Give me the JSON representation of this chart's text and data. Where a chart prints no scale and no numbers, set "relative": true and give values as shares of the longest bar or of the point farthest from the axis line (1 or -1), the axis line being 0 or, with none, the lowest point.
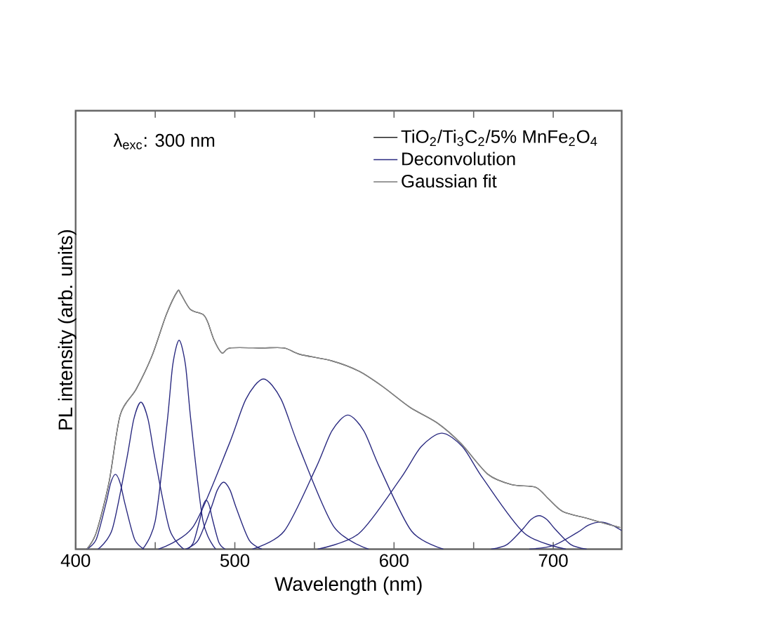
{
  "chart_data": {
    "type": "line",
    "relative": true,
    "xlabel": "Wavelength (nm)",
    "ylabel": "PL intensity (arb. units)",
    "annotations": [
      "λ$_{exc}$: 300 nm"
    ],
    "xlim": [
      400,
      743
    ],
    "xticks": [
      400,
      {
        "value": 450,
        "label": null
      },
      500,
      {
        "value": 550,
        "label": null
      },
      600,
      {
        "value": 650,
        "label": null
      },
      700
    ],
    "legend": "top right",
    "grid": false,
    "marker": "none",
    "line_style": "solid",
    "series": [
      {
        "name": "TiO$_{2}$/Ti$_{3}$C$_{2}$/5% MnFe$_{2}$O$_{4}$",
        "color": "#222222",
        "x": [
          407,
          413,
          421,
          428,
          438,
          448,
          457,
          464,
          466,
          472,
          480,
          483,
          487,
          492,
          497,
          517,
          531,
          541,
          561,
          578,
          593,
          610,
          627,
          642,
          659,
          674,
          689,
          697,
          706,
          721,
          734,
          742
        ],
        "values": [
          0,
          0.065,
          0.26,
          0.52,
          0.62,
          0.75,
          0.91,
          1.0,
          0.99,
          0.93,
          0.91,
          0.88,
          0.81,
          0.76,
          0.78,
          0.78,
          0.78,
          0.755,
          0.73,
          0.69,
          0.63,
          0.55,
          0.49,
          0.41,
          0.29,
          0.25,
          0.24,
          0.195,
          0.146,
          0.12,
          0.097,
          0.084
        ]
      },
      {
        "name": "Deconvolution",
        "color": "#2a2a80",
        "x": [
          407,
          413,
          419,
          422,
          425,
          428,
          431,
          437,
          443
        ],
        "values": [
          0,
          0.039,
          0.176,
          0.256,
          0.29,
          0.256,
          0.176,
          0.039,
          0
        ]
      },
      {
        "color": "#2a2a80",
        "x": [
          414,
          423,
          432,
          436.5,
          441,
          445.5,
          450,
          459,
          468
        ],
        "values": [
          0,
          0.077,
          0.346,
          0.503,
          0.57,
          0.503,
          0.346,
          0.077,
          0
        ]
      },
      {
        "color": "#2a2a80",
        "x": [
          442,
          450,
          457.5,
          461,
          465,
          469,
          472.5,
          480,
          488
        ],
        "values": [
          0,
          0.109,
          0.492,
          0.714,
          0.81,
          0.714,
          0.492,
          0.109,
          0
        ]
      },
      {
        "color": "#2a2a80",
        "x": [
          470,
          474,
          478,
          480,
          482,
          484,
          486,
          490,
          494
        ],
        "values": [
          0,
          0.026,
          0.115,
          0.168,
          0.19,
          0.168,
          0.115,
          0.026,
          0
        ]
      },
      {
        "color": "#2a2a80",
        "x": [
          469,
          477,
          485,
          489,
          493,
          497,
          501,
          509,
          517
        ],
        "values": [
          0,
          0.035,
          0.158,
          0.229,
          0.26,
          0.229,
          0.158,
          0.035,
          0
        ]
      },
      {
        "color": "#2a2a80",
        "x": [
          452,
          474,
          496,
          507,
          518,
          529,
          540,
          562,
          584
        ],
        "values": [
          0,
          0.089,
          0.401,
          0.582,
          0.66,
          0.582,
          0.401,
          0.089,
          0
        ]
      },
      {
        "color": "#2a2a80",
        "x": [
          511,
          531,
          551,
          561,
          571,
          581,
          591,
          611,
          631
        ],
        "values": [
          0,
          0.07,
          0.316,
          0.459,
          0.52,
          0.459,
          0.316,
          0.07,
          0
        ]
      },
      {
        "color": "#2a2a80",
        "x": [
          552,
          578,
          604,
          617,
          630,
          643,
          656,
          682,
          708
        ],
        "values": [
          0,
          0.061,
          0.273,
          0.397,
          0.45,
          0.397,
          0.273,
          0.061,
          0
        ]
      },
      {
        "color": "#2a2a80",
        "x": [
          661,
          671,
          681,
          686,
          691,
          696,
          701,
          711,
          721
        ],
        "values": [
          0,
          0.018,
          0.079,
          0.115,
          0.13,
          0.115,
          0.079,
          0.018,
          0
        ]
      },
      {
        "color": "#2a2a80",
        "x": [
          685,
          700,
          715,
          722,
          730,
          737,
          743
        ],
        "values": [
          0,
          0.014,
          0.064,
          0.093,
          0.105,
          0.093,
          0.072
        ]
      },
      {
        "name": "Gaussian fit",
        "color": "#8a8a8a",
        "x": [
          407,
          413,
          421,
          428,
          438,
          448,
          457,
          464,
          466,
          472,
          480,
          483,
          487,
          492,
          497,
          517,
          531,
          541,
          561,
          578,
          593,
          610,
          627,
          642,
          659,
          674,
          689,
          697,
          706,
          721,
          734,
          742
        ],
        "values": [
          0,
          0.065,
          0.26,
          0.52,
          0.62,
          0.75,
          0.91,
          1.0,
          0.99,
          0.93,
          0.91,
          0.88,
          0.81,
          0.76,
          0.78,
          0.78,
          0.78,
          0.755,
          0.73,
          0.69,
          0.63,
          0.55,
          0.49,
          0.41,
          0.29,
          0.25,
          0.24,
          0.195,
          0.146,
          0.12,
          0.097,
          0.084
        ]
      }
    ]
  }
}
